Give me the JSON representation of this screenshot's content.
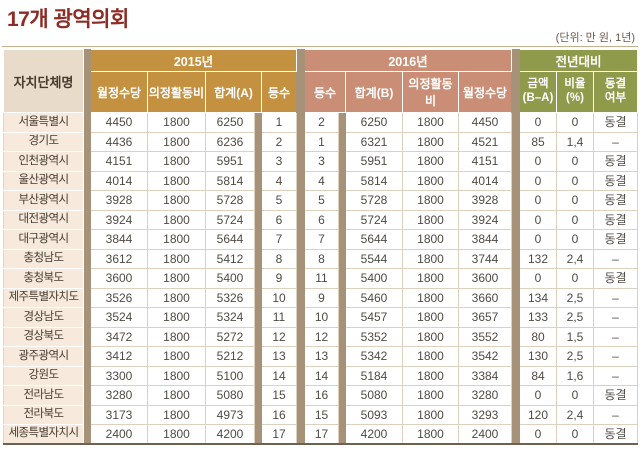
{
  "page": {
    "title": "17개 광역의회",
    "unit_note": "(단위: 만 원, 1년)"
  },
  "colors": {
    "title_red": "#8d2b24",
    "gold_2015": "#c49140",
    "salmon_2016": "#c98e75",
    "olive_prev": "#8f9b4b",
    "name_header_bg": "#e8dbc9",
    "name_cell_bg": "#f7e9dc",
    "divider_bar": "#a69278"
  },
  "table_header": {
    "name": "자치단체명",
    "g2015": "2015년",
    "g2016": "2016년",
    "gprev": "전년대비",
    "c2015": {
      "m": "월정수당",
      "a": "의정활동비",
      "h": "합계(A)",
      "r": "등수"
    },
    "c2016": {
      "r": "등수",
      "h": "합계(B)",
      "a": "의정활동비",
      "m": "월정수당"
    },
    "cprev": {
      "amt": "금액\n(B–A)",
      "pct": "비율\n(%)",
      "fr": "동결\n여부"
    }
  },
  "chart_data": {
    "type": "table",
    "title": "17개 광역의회",
    "unit": "(단위: 만 원, 1년)",
    "column_groups": [
      "자치단체명",
      "2015년",
      "2016년",
      "전년대비"
    ],
    "columns": [
      "자치단체명",
      "2015 월정수당",
      "2015 의정활동비",
      "2015 합계(A)",
      "2015 등수",
      "2016 등수",
      "2016 합계(B)",
      "2016 의정활동비",
      "2016 월정수당",
      "금액(B–A)",
      "비율(%)",
      "동결여부"
    ],
    "rows": [
      [
        "서울특별시",
        "4450",
        "1800",
        "6250",
        "1",
        "2",
        "6250",
        "1800",
        "4450",
        "0",
        "0",
        "동결"
      ],
      [
        "경기도",
        "4436",
        "1800",
        "6236",
        "2",
        "1",
        "6321",
        "1800",
        "4521",
        "85",
        "1,4",
        "–"
      ],
      [
        "인천광역시",
        "4151",
        "1800",
        "5951",
        "3",
        "3",
        "5951",
        "1800",
        "4151",
        "0",
        "0",
        "동결"
      ],
      [
        "울산광역시",
        "4014",
        "1800",
        "5814",
        "4",
        "4",
        "5814",
        "1800",
        "4014",
        "0",
        "0",
        "동결"
      ],
      [
        "부산광역시",
        "3928",
        "1800",
        "5728",
        "5",
        "5",
        "5728",
        "1800",
        "3928",
        "0",
        "0",
        "동결"
      ],
      [
        "대전광역시",
        "3924",
        "1800",
        "5724",
        "6",
        "6",
        "5724",
        "1800",
        "3924",
        "0",
        "0",
        "동결"
      ],
      [
        "대구광역시",
        "3844",
        "1800",
        "5644",
        "7",
        "7",
        "5644",
        "1800",
        "3844",
        "0",
        "0",
        "동결"
      ],
      [
        "충청남도",
        "3612",
        "1800",
        "5412",
        "8",
        "8",
        "5544",
        "1800",
        "3744",
        "132",
        "2,4",
        "–"
      ],
      [
        "충청북도",
        "3600",
        "1800",
        "5400",
        "9",
        "11",
        "5400",
        "1800",
        "3600",
        "0",
        "0",
        "동결"
      ],
      [
        "제주특별자치도",
        "3526",
        "1800",
        "5326",
        "10",
        "9",
        "5460",
        "1800",
        "3660",
        "134",
        "2,5",
        "–"
      ],
      [
        "경상남도",
        "3524",
        "1800",
        "5324",
        "11",
        "10",
        "5457",
        "1800",
        "3657",
        "133",
        "2,5",
        "–"
      ],
      [
        "경상북도",
        "3472",
        "1800",
        "5272",
        "12",
        "12",
        "5352",
        "1800",
        "3552",
        "80",
        "1,5",
        "–"
      ],
      [
        "광주광역시",
        "3412",
        "1800",
        "5212",
        "13",
        "13",
        "5342",
        "1800",
        "3542",
        "130",
        "2,5",
        "–"
      ],
      [
        "강원도",
        "3300",
        "1800",
        "5100",
        "14",
        "14",
        "5184",
        "1800",
        "3384",
        "84",
        "1,6",
        "–"
      ],
      [
        "전라남도",
        "3280",
        "1800",
        "5080",
        "15",
        "16",
        "5080",
        "1800",
        "3280",
        "0",
        "0",
        "동결"
      ],
      [
        "전라북도",
        "3173",
        "1800",
        "4973",
        "16",
        "15",
        "5093",
        "1800",
        "3293",
        "120",
        "2,4",
        "–"
      ],
      [
        "세종특별자치시",
        "2400",
        "1800",
        "4200",
        "17",
        "17",
        "4200",
        "1800",
        "2400",
        "0",
        "0",
        "동결"
      ]
    ]
  }
}
